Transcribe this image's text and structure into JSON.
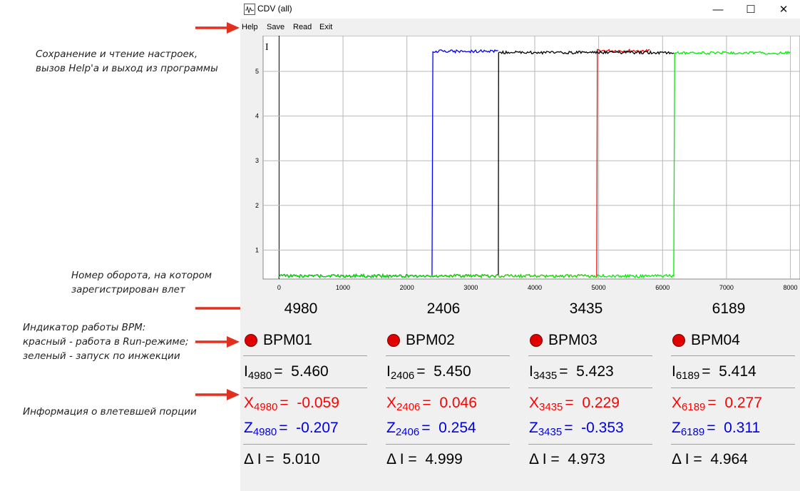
{
  "annotations": {
    "settings_line1": "Сохранение и чтение настроек,",
    "settings_line2": "вызов Help'а и выход из программы",
    "turn_line1": "Номер оборота, на котором",
    "turn_line2": "зарегистрирован влет",
    "indicator_line1": "Индикатор работы ВРМ:",
    "indicator_line2": "красный - работа в Run-режиме;",
    "indicator_line3": "зеленый - запуск по инжекции",
    "portion_info": "Информация о влетевшей порции"
  },
  "window": {
    "title": "CDV (all)",
    "minimize": "—",
    "maximize": "☐",
    "close": "✕"
  },
  "menu": {
    "help": "Help",
    "save": "Save",
    "read": "Read",
    "exit": "Exit"
  },
  "chart_data": {
    "type": "line",
    "ylabel": "I",
    "xlim": [
      -250,
      8150
    ],
    "ylim": [
      0.35,
      5.8
    ],
    "x_ticks": [
      "0",
      "1000",
      "2000",
      "3000",
      "4000",
      "5000",
      "6000",
      "7000",
      "8000"
    ],
    "y_ticks": [
      "1",
      "2",
      "3",
      "4",
      "5"
    ],
    "grid": true,
    "series": [
      {
        "color": "#ff0000",
        "points": [
          [
            0,
            0.42
          ],
          [
            4980,
            0.42
          ],
          [
            4980,
            5.46
          ],
          [
            5800,
            5.46
          ]
        ]
      },
      {
        "color": "#0000ff",
        "points": [
          [
            0,
            0.42
          ],
          [
            2406,
            0.42
          ],
          [
            2406,
            5.45
          ],
          [
            3435,
            5.45
          ]
        ]
      },
      {
        "color": "#000000",
        "points": [
          [
            0,
            0.42
          ],
          [
            3435,
            0.42
          ],
          [
            3435,
            5.423
          ],
          [
            6189,
            5.423
          ]
        ]
      },
      {
        "color": "#00ee00",
        "points": [
          [
            0,
            0.42
          ],
          [
            6189,
            0.42
          ],
          [
            6189,
            5.414
          ],
          [
            8000,
            5.414
          ]
        ]
      }
    ]
  },
  "bpms": [
    {
      "turn": "4980",
      "name": "BPM01",
      "indicator": "red",
      "i_label": "I",
      "i_sub": "4980",
      "i_val": "5.460",
      "x_label": "X",
      "x_sub": "4980",
      "x_val": "-0.059",
      "z_label": "Z",
      "z_sub": "4980",
      "z_val": "-0.207",
      "di_label": "Δ I =",
      "di_val": "5.010"
    },
    {
      "turn": "2406",
      "name": "BPM02",
      "indicator": "red",
      "i_label": "I",
      "i_sub": "2406",
      "i_val": "5.450",
      "x_label": "X",
      "x_sub": "2406",
      "x_val": "0.046",
      "z_label": "Z",
      "z_sub": "2406",
      "z_val": "0.254",
      "di_label": "Δ I =",
      "di_val": "4.999"
    },
    {
      "turn": "3435",
      "name": "BPM03",
      "indicator": "red",
      "i_label": "I",
      "i_sub": "3435",
      "i_val": "5.423",
      "x_label": "X",
      "x_sub": "3435",
      "x_val": "0.229",
      "z_label": "Z",
      "z_sub": "3435",
      "z_val": "-0.353",
      "di_label": "Δ I =",
      "di_val": "4.973"
    },
    {
      "turn": "6189",
      "name": "BPM04",
      "indicator": "red",
      "i_label": "I",
      "i_sub": "6189",
      "i_val": "5.414",
      "x_label": "X",
      "x_sub": "6189",
      "x_val": "0.277",
      "z_label": "Z",
      "z_sub": "6189",
      "z_val": "0.311",
      "di_label": "Δ I =",
      "di_val": "4.964"
    }
  ],
  "colors": {
    "indicator_red": "#e00000",
    "x_color": "#ff0000",
    "z_color": "#0000e0",
    "arrow": "#e03020"
  }
}
